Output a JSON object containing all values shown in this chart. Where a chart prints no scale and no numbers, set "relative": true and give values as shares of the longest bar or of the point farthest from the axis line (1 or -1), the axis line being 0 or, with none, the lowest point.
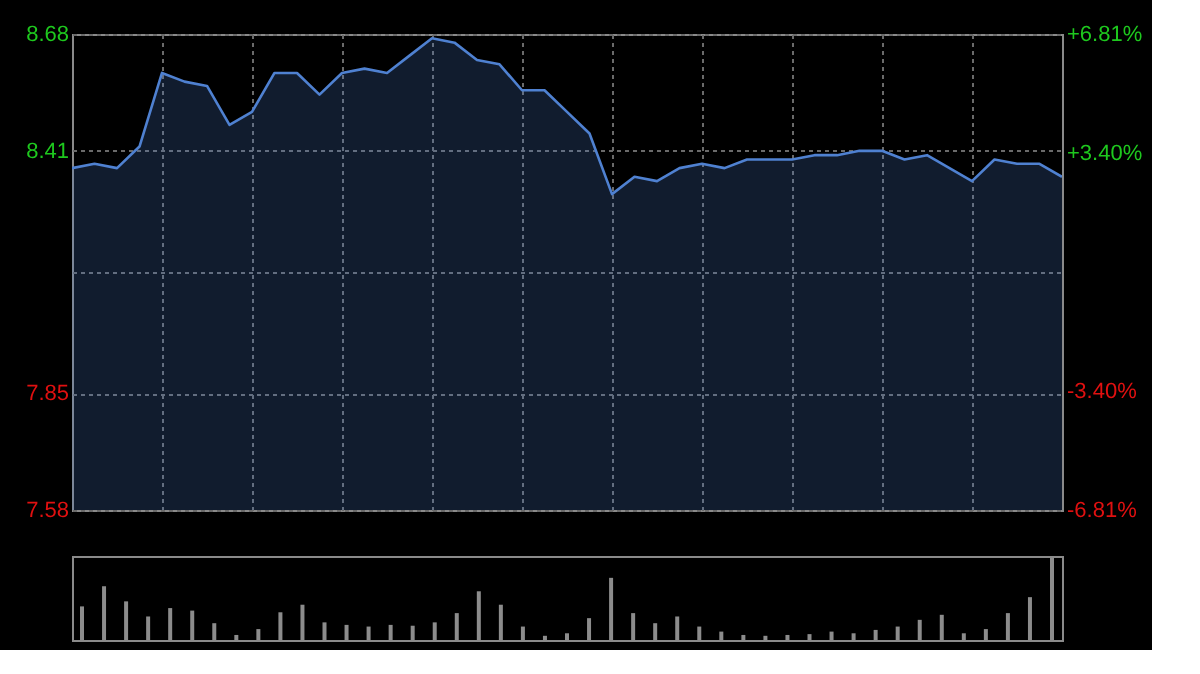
{
  "chart_data": [
    {
      "type": "area",
      "categories": [
        null,
        null,
        null,
        null,
        null,
        null,
        null,
        null,
        null,
        null,
        null,
        null,
        null,
        null,
        null,
        null,
        null,
        null,
        null,
        null,
        null,
        null,
        null,
        null,
        null,
        null,
        null,
        null,
        null,
        null,
        null,
        null,
        null,
        null,
        null,
        null,
        null,
        null,
        null,
        null,
        null,
        null,
        null,
        null,
        null
      ],
      "series": [
        {
          "color": "#4f81d1",
          "values": [
            8.37,
            8.38,
            8.37,
            8.42,
            8.59,
            8.57,
            8.56,
            8.47,
            8.5,
            8.59,
            8.59,
            8.54,
            8.59,
            8.6,
            8.59,
            8.63,
            8.67,
            8.66,
            8.62,
            8.61,
            8.55,
            8.55,
            8.5,
            8.45,
            8.31,
            8.35,
            8.34,
            8.37,
            8.38,
            8.37,
            8.39,
            8.39,
            8.39,
            8.4,
            8.4,
            8.41,
            8.41,
            8.39,
            8.4,
            8.37,
            8.34,
            8.39,
            8.38,
            8.38,
            8.35
          ]
        }
      ],
      "ylim": [
        7.58,
        8.68
      ],
      "yticks": [
        7.58,
        7.85,
        {
          "value": 8.13,
          "label": null
        },
        8.41,
        8.68
      ],
      "y2lim": [
        -6.81,
        6.81
      ],
      "y2ticks": [
        {
          "value": -6.81,
          "label": "-6.81%"
        },
        {
          "value": -3.4,
          "label": "-3.40%"
        },
        {
          "value": 3.4,
          "label": "+3.40%"
        },
        {
          "value": 6.81,
          "label": "+6.81%"
        }
      ],
      "grid": true,
      "tick_labels": "y"
    },
    {
      "type": "bar",
      "relative": true,
      "categories": [
        null,
        null,
        null,
        null,
        null,
        null,
        null,
        null,
        null,
        null,
        null,
        null,
        null,
        null,
        null,
        null,
        null,
        null,
        null,
        null,
        null,
        null,
        null,
        null,
        null,
        null,
        null,
        null,
        null,
        null,
        null,
        null,
        null,
        null,
        null,
        null,
        null,
        null,
        null,
        null,
        null,
        null,
        null,
        null,
        null
      ],
      "series": [
        {
          "color": "#8c8c8c",
          "values": [
            0.4,
            0.64,
            0.46,
            0.28,
            0.38,
            0.35,
            0.2,
            0.06,
            0.13,
            0.33,
            0.42,
            0.21,
            0.18,
            0.16,
            0.18,
            0.17,
            0.21,
            0.32,
            0.58,
            0.42,
            0.16,
            0.05,
            0.08,
            0.26,
            0.74,
            0.32,
            0.2,
            0.28,
            0.16,
            0.1,
            0.06,
            0.05,
            0.06,
            0.07,
            0.1,
            0.08,
            0.12,
            0.16,
            0.24,
            0.3,
            0.08,
            0.13,
            0.32,
            0.51,
            1.0
          ]
        }
      ],
      "tick_labels": false
    }
  ]
}
